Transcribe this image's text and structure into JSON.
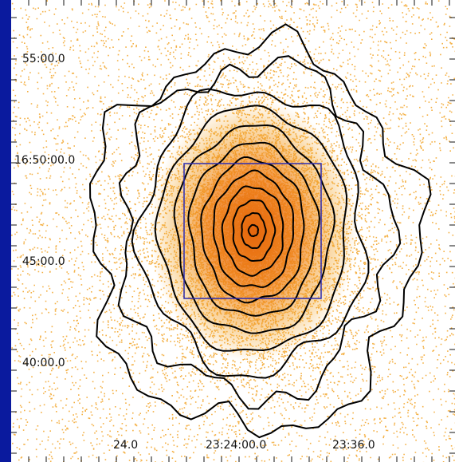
{
  "image": {
    "background_color": "#0a1a9e",
    "plot_background": "#ffffff",
    "point_color": "#f2a224",
    "core_color": "#e4620a",
    "contour_color": "#000000",
    "box_color": "#2b2bb0"
  },
  "axes": {
    "y_tick_labels": [
      "55:00.0",
      "16:50:00.0",
      "45:00.0",
      "40:00.0"
    ],
    "x_tick_labels": [
      "24.0",
      "23:24:00.0",
      "23:36.0"
    ]
  }
}
